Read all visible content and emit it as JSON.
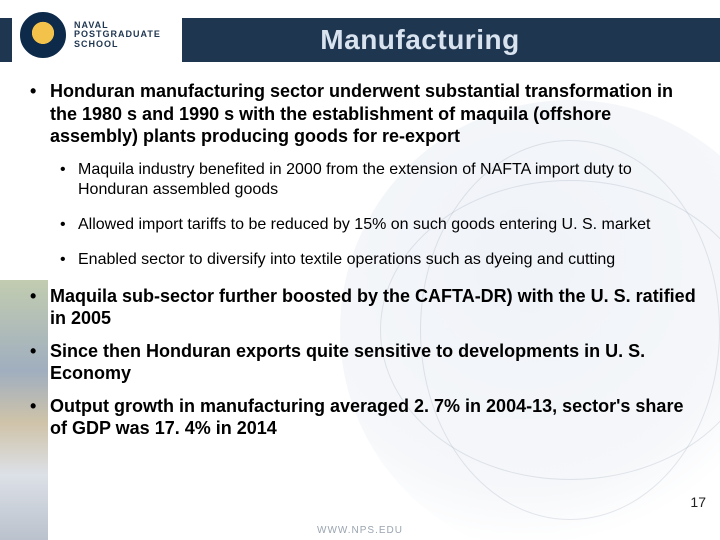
{
  "logo": {
    "line1": "NAVAL",
    "line2": "POSTGRADUATE",
    "line3": "SCHOOL"
  },
  "title": "Manufacturing",
  "bullets": [
    {
      "text": "Honduran manufacturing sector underwent substantial transformation in the 1980 s and 1990 s with the establishment of  maquila (offshore assembly) plants producing goods for re-export",
      "sub": [
        "Maquila industry benefited in 2000 from the extension of NAFTA import duty to Honduran assembled goods",
        "Allowed import tariffs to be reduced by 15% on such goods entering U. S. market",
        "Enabled sector to diversify into textile operations such as dyeing and cutting"
      ]
    },
    {
      "text": "Maquila sub-sector further boosted by the CAFTA-DR) with the U. S. ratified in 2005",
      "sub": []
    },
    {
      "text": "Since then Honduran exports quite sensitive to developments in U. S. Economy",
      "sub": []
    },
    {
      "text": "Output growth in manufacturing averaged 2. 7% in 2004-13, sector's share of GDP was 17. 4% in 2014",
      "sub": []
    }
  ],
  "page_number": "17",
  "footer_url": "WWW.NPS.EDU",
  "colors": {
    "header_bg": "#1f3650",
    "title_color": "#d8e3ef",
    "text_color": "#000000"
  }
}
